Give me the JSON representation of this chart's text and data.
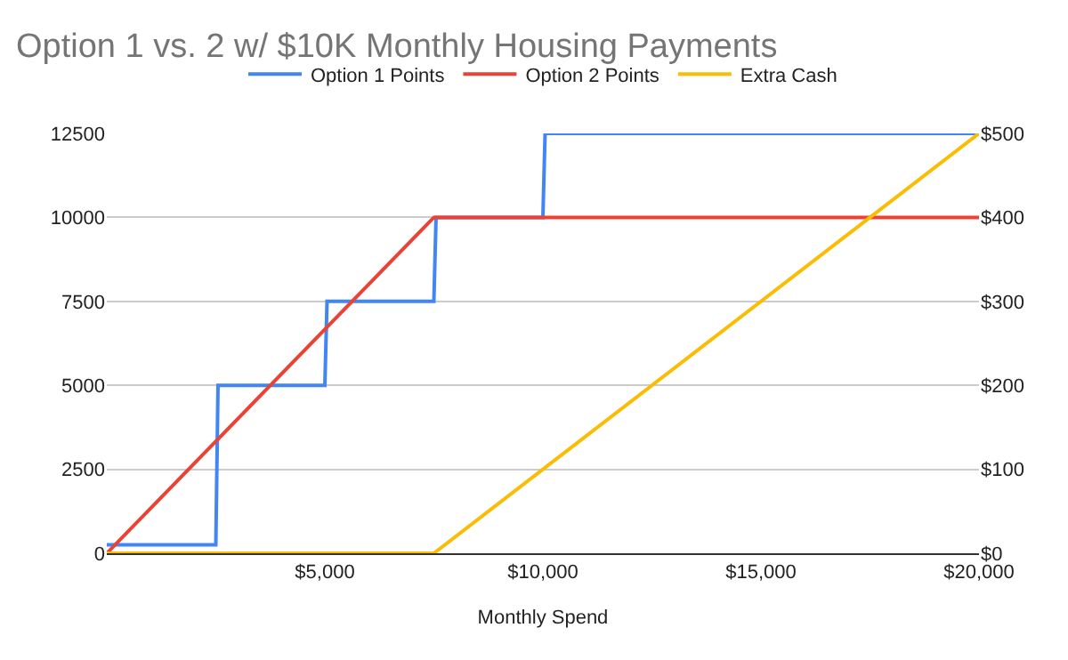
{
  "chart_data": {
    "type": "line",
    "title": "Option 1 vs. 2 w/ $10K Monthly Housing Payments",
    "xlabel": "Monthly Spend",
    "series": [
      {
        "name": "Option 1 Points",
        "color": "#4285f4",
        "x": [
          0,
          2500,
          2550,
          5000,
          5050,
          7500,
          7550,
          10000,
          10050,
          20000
        ],
        "values": [
          250,
          250,
          5000,
          5000,
          7500,
          7500,
          10000,
          10000,
          12500,
          12500
        ]
      },
      {
        "name": "Option 2 Points",
        "color": "#ea4335",
        "x": [
          0,
          7500,
          20000
        ],
        "values": [
          0,
          10000,
          10000
        ]
      },
      {
        "name": "Extra Cash",
        "color": "#fbbc04",
        "axis": "y2",
        "x": [
          0,
          7500,
          20000
        ],
        "values": [
          0,
          0,
          500
        ]
      }
    ],
    "xlim": [
      0,
      20000
    ],
    "xticks": [
      {
        "value": 5000,
        "label": "$5,000"
      },
      {
        "value": 10000,
        "label": "$10,000"
      },
      {
        "value": 15000,
        "label": "$15,000"
      },
      {
        "value": 20000,
        "label": "$20,000"
      }
    ],
    "ylim": [
      0,
      12500
    ],
    "yticks": [
      0,
      2500,
      5000,
      7500,
      10000,
      12500
    ],
    "y2lim": [
      0,
      500
    ],
    "y2ticks": [
      {
        "value": 0,
        "label": "$0"
      },
      {
        "value": 100,
        "label": "$100"
      },
      {
        "value": 200,
        "label": "$200"
      },
      {
        "value": 300,
        "label": "$300"
      },
      {
        "value": 400,
        "label": "$400"
      },
      {
        "value": 500,
        "label": "$500"
      }
    ],
    "grid": "y",
    "legend": "top",
    "line_style": "solid",
    "marker": "none"
  }
}
